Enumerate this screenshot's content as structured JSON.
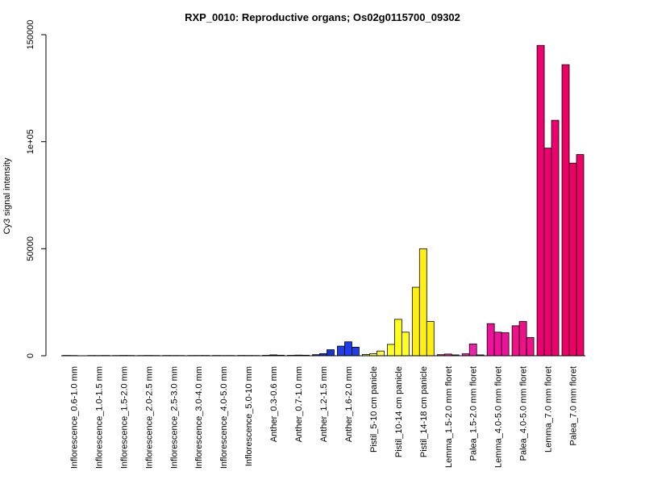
{
  "chart_data": {
    "type": "bar",
    "title": "RXP_0010: Reproductive organs; Os02g0115700_09302",
    "xlabel": "",
    "ylabel": "Cy3 signal intensity",
    "ylim": [
      0,
      150000
    ],
    "yticks": [
      {
        "value": 0,
        "label": "0"
      },
      {
        "value": 50000,
        "label": "50000"
      },
      {
        "value": 100000,
        "label": "1e+05"
      },
      {
        "value": 150000,
        "label": "150000"
      }
    ],
    "groups": [
      {
        "label": "Inflorescence_0.6-1.0 mm",
        "color": "#000080",
        "values": [
          150,
          120
        ]
      },
      {
        "label": "Inflorescence_1.0-1.5 mm",
        "color": "#000080",
        "values": [
          130,
          110,
          140
        ]
      },
      {
        "label": "Inflorescence_1.5-2.0 mm",
        "color": "#000080",
        "values": [
          120,
          150,
          130
        ]
      },
      {
        "label": "Inflorescence_2.0-2.5 mm",
        "color": "#000080",
        "values": [
          110,
          140,
          120
        ]
      },
      {
        "label": "Inflorescence_2.5-3.0 mm",
        "color": "#000080",
        "values": [
          130,
          120,
          110
        ]
      },
      {
        "label": "Inflorescence_3.0-4.0 mm",
        "color": "#000080",
        "values": [
          120,
          130,
          140
        ]
      },
      {
        "label": "Inflorescence_4.0-5.0 mm",
        "color": "#000080",
        "values": [
          140,
          110,
          120
        ]
      },
      {
        "label": "Inflorescence_5.0-10 mm",
        "color": "#000080",
        "values": [
          150,
          130,
          120
        ]
      },
      {
        "label": "Anther_0.3-0.6 mm",
        "color": "#00008b",
        "values": [
          200,
          400,
          250
        ]
      },
      {
        "label": "Anther_0.7-1.0 mm",
        "color": "#0a1aa0",
        "values": [
          200,
          300,
          250
        ]
      },
      {
        "label": "Anther_1.2-1.5 mm",
        "color": "#1a33cc",
        "values": [
          500,
          1000,
          2800
        ]
      },
      {
        "label": "Anther_1.6-2.0 mm",
        "color": "#1f3de8",
        "values": [
          4500,
          6500,
          4000
        ]
      },
      {
        "label": "Pistil_5-10 cm panicle",
        "color": "#ffff44",
        "values": [
          600,
          900,
          2200
        ]
      },
      {
        "label": "Pistil_10-14 cm panicle",
        "color": "#ffff22",
        "values": [
          5300,
          17000,
          11000
        ]
      },
      {
        "label": "Pistil_14-18 cm panicle",
        "color": "#ffee11",
        "values": [
          32000,
          50000,
          16000
        ]
      },
      {
        "label": "Lemma_1.5-2.0 mm floret",
        "color": "#ee22aa",
        "values": [
          500,
          800,
          400
        ]
      },
      {
        "label": "Palea_1.5-2.0 mm floret",
        "color": "#ee22aa",
        "values": [
          900,
          5500,
          400
        ]
      },
      {
        "label": "Lemma_4.0-5.0 mm floret",
        "color": "#ee1199",
        "values": [
          15000,
          11000,
          10800
        ]
      },
      {
        "label": "Palea_4.0-5.0 mm floret",
        "color": "#ee1188",
        "values": [
          14000,
          16000,
          8500
        ]
      },
      {
        "label": "Lemma_7.0 mm floret",
        "color": "#ee0070",
        "values": [
          145000,
          97000,
          110000
        ]
      },
      {
        "label": "Palea_7.0 mm floret",
        "color": "#ee0066",
        "values": [
          136000,
          90000,
          94000
        ]
      }
    ]
  }
}
